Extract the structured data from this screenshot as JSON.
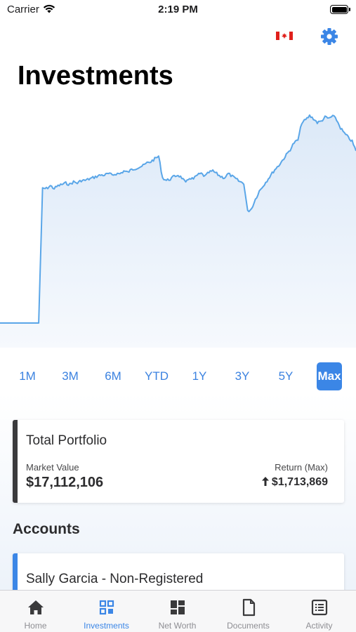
{
  "status_bar": {
    "carrier": "Carrier",
    "time": "2:19 PM"
  },
  "header": {
    "title": "Investments",
    "flag_icon": "canada-flag-icon",
    "settings_icon": "gear-icon"
  },
  "colors": {
    "accent": "#3b86e6",
    "line": "#5aa6e8",
    "fill": "#e3eefa",
    "portfolio_bar": "#3a3a3c"
  },
  "chart_data": {
    "type": "area",
    "title": "",
    "xlabel": "",
    "ylabel": "",
    "grid": false,
    "series": [
      {
        "values": [
          0,
          0,
          0,
          0,
          0,
          0,
          0,
          0,
          0,
          0,
          0,
          100,
          100,
          102,
          100,
          102,
          103,
          104,
          103,
          105,
          104,
          106,
          106,
          107,
          108,
          109,
          110,
          110,
          111,
          110,
          111,
          111,
          113,
          112,
          114,
          115,
          116,
          117,
          119,
          120,
          122,
          124,
          108,
          106,
          107,
          109,
          110,
          108,
          104,
          108,
          107,
          110,
          111,
          109,
          112,
          113,
          111,
          109,
          108,
          111,
          109,
          107,
          105,
          104,
          83,
          85,
          92,
          98,
          102,
          106,
          110,
          114,
          117,
          121,
          125,
          129,
          134,
          136,
          149,
          151,
          154,
          152,
          149,
          150,
          153,
          152,
          154,
          151,
          145,
          141,
          138,
          135,
          128
        ]
      }
    ]
  },
  "ranges": {
    "items": [
      "1M",
      "3M",
      "6M",
      "YTD",
      "1Y",
      "3Y",
      "5Y",
      "Max"
    ],
    "selected": "Max"
  },
  "portfolio": {
    "title": "Total Portfolio",
    "market_value_label": "Market Value",
    "market_value": "$17,112,106",
    "return_label": "Return (Max)",
    "return_value": "$1,713,869",
    "return_icon": "arrow-up-icon"
  },
  "accounts": {
    "title": "Accounts",
    "items": [
      {
        "name": "Sally Garcia - Non-Registered"
      }
    ]
  },
  "tabs": [
    {
      "label": "Home",
      "icon": "home-icon",
      "active": false
    },
    {
      "label": "Investments",
      "icon": "grid-icon",
      "active": true
    },
    {
      "label": "Net Worth",
      "icon": "dashboard-icon",
      "active": false
    },
    {
      "label": "Documents",
      "icon": "document-icon",
      "active": false
    },
    {
      "label": "Activity",
      "icon": "list-icon",
      "active": false
    }
  ]
}
